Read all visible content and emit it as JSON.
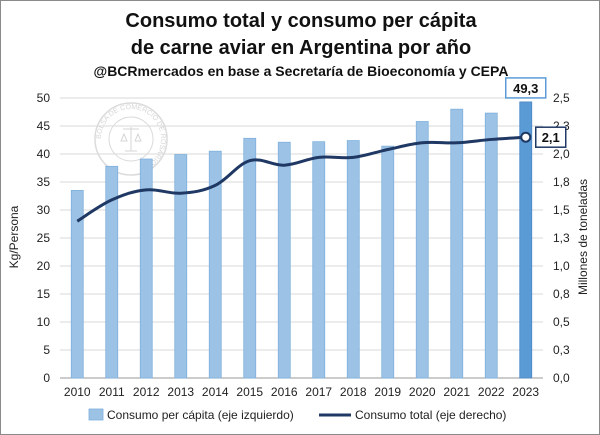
{
  "chart_data": {
    "type": "bar+line",
    "title_line1": "Consumo total y consumo per cápita",
    "title_line2": "de carne aviar en Argentina por año",
    "subtitle": "@BCRmercados en base a Secretaría de Bioeconomía y CEPA",
    "watermark": "BOLSA DE COMERCIO DE ROSARIO",
    "categories": [
      "2010",
      "2011",
      "2012",
      "2013",
      "2014",
      "2015",
      "2016",
      "2017",
      "2018",
      "2019",
      "2020",
      "2021",
      "2022",
      "2023"
    ],
    "y_left": {
      "label": "Kg/Persona",
      "ylim": [
        0,
        50
      ],
      "ticks": [
        "0",
        "5",
        "10",
        "15",
        "20",
        "25",
        "30",
        "35",
        "40",
        "45",
        "50"
      ]
    },
    "y_right": {
      "label": "Millones de toneladas",
      "ylim": [
        0,
        2.5
      ],
      "ticks": [
        "0,0",
        "0,3",
        "0,5",
        "0,8",
        "1,0",
        "1,3",
        "1,5",
        "1,8",
        "2,0",
        "2,3",
        "2,5"
      ]
    },
    "series": [
      {
        "name": "Consumo per cápita (eje izquierdo)",
        "axis": "left",
        "kind": "bar",
        "color": "#9cc3e6",
        "highlight_color": "#5b9bd5",
        "values": [
          33.5,
          37.8,
          39.1,
          39.9,
          40.5,
          42.8,
          42.1,
          42.2,
          42.4,
          41.4,
          45.8,
          48.0,
          47.3,
          49.3
        ]
      },
      {
        "name": "Consumo total (eje derecho)",
        "axis": "right",
        "kind": "line",
        "color": "#1f3864",
        "values": [
          1.4,
          1.59,
          1.68,
          1.65,
          1.72,
          1.94,
          1.9,
          1.97,
          1.97,
          2.04,
          2.1,
          2.1,
          2.13,
          2.15
        ]
      }
    ],
    "callouts": {
      "bar_last": "49,3",
      "line_last": "2,1"
    },
    "grid": true,
    "legend_position": "bottom"
  }
}
